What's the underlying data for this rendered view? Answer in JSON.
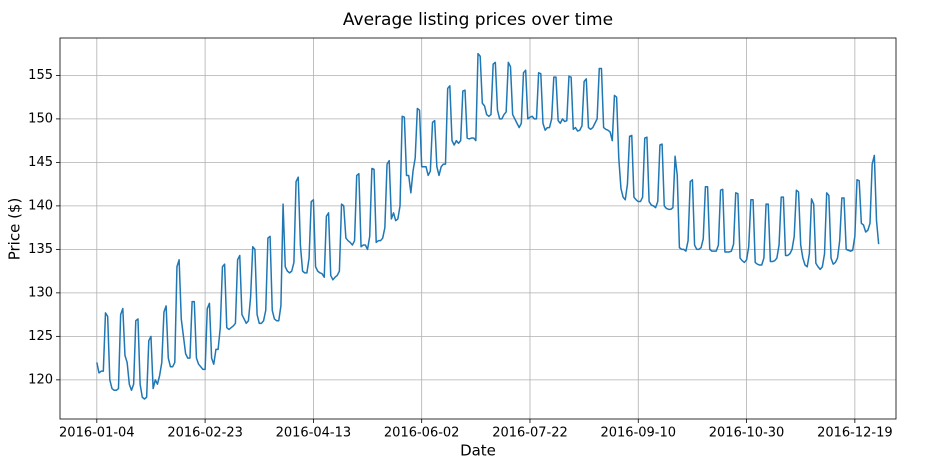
{
  "chart_data": {
    "type": "line",
    "title": "Average listing prices over time",
    "xlabel": "Date",
    "ylabel": "Price ($)",
    "xlim": [
      "2015-12-18",
      "2017-01-07"
    ],
    "ylim": [
      115.5,
      159.3
    ],
    "grid": true,
    "line_color": "#1f77b4",
    "x_ticks": [
      "2016-01-04",
      "2016-02-23",
      "2016-04-13",
      "2016-06-02",
      "2016-07-22",
      "2016-09-10",
      "2016-10-30",
      "2016-12-19"
    ],
    "y_ticks": [
      120,
      125,
      130,
      135,
      140,
      145,
      150,
      155
    ],
    "series": [
      {
        "start_date": "2016-01-04",
        "values": [
          122.0,
          120.8,
          121.0,
          121.0,
          127.7,
          127.3,
          120.0,
          119.0,
          118.8,
          118.8,
          119.0,
          127.5,
          128.2,
          122.8,
          122.0,
          119.5,
          118.8,
          119.5,
          126.8,
          127.0,
          119.5,
          118.0,
          117.8,
          118.0,
          124.5,
          125.0,
          119.0,
          120.0,
          119.5,
          120.5,
          122.0,
          127.8,
          128.5,
          122.5,
          121.5,
          121.5,
          122.0,
          133.0,
          133.8,
          127.0,
          125.0,
          123.0,
          122.5,
          122.5,
          129.0,
          129.0,
          122.5,
          121.8,
          121.5,
          121.2,
          121.2,
          128.2,
          128.8,
          122.5,
          121.8,
          123.5,
          123.5,
          126.0,
          133.0,
          133.3,
          126.0,
          125.8,
          126.0,
          126.2,
          126.5,
          133.8,
          134.3,
          127.5,
          127.0,
          126.5,
          126.8,
          129.5,
          135.3,
          135.0,
          127.5,
          126.5,
          126.5,
          126.8,
          128.0,
          136.3,
          136.5,
          128.0,
          127.0,
          126.8,
          126.8,
          128.5,
          140.2,
          133.0,
          132.5,
          132.3,
          132.5,
          133.5,
          142.8,
          143.3,
          135.5,
          132.5,
          132.3,
          132.3,
          134.0,
          140.5,
          140.7,
          133.0,
          132.5,
          132.3,
          132.2,
          131.8,
          138.8,
          139.2,
          132.0,
          131.5,
          131.8,
          132.0,
          132.5,
          140.2,
          140.0,
          136.3,
          136.0,
          135.8,
          135.5,
          136.0,
          143.5,
          143.7,
          135.3,
          135.5,
          135.5,
          135.0,
          136.5,
          144.3,
          144.2,
          135.8,
          136.0,
          136.0,
          136.3,
          137.5,
          144.8,
          145.2,
          138.5,
          139.2,
          138.3,
          138.5,
          140.0,
          150.3,
          150.2,
          143.5,
          143.5,
          141.5,
          144.0,
          145.5,
          151.2,
          151.0,
          144.5,
          144.5,
          144.5,
          143.5,
          144.0,
          149.6,
          149.8,
          144.5,
          143.5,
          144.5,
          144.8,
          144.8,
          153.5,
          153.8,
          147.5,
          147.0,
          147.5,
          147.2,
          147.5,
          153.2,
          153.3,
          147.8,
          147.7,
          147.8,
          147.8,
          147.5,
          157.5,
          157.2,
          151.8,
          151.5,
          150.5,
          150.3,
          150.5,
          156.3,
          156.5,
          151.0,
          150.0,
          150.0,
          150.5,
          150.8,
          156.5,
          156.0,
          150.5,
          150.0,
          149.5,
          149.0,
          149.5,
          155.3,
          155.6,
          150.0,
          150.2,
          150.3,
          150.0,
          150.0,
          155.3,
          155.2,
          149.5,
          148.7,
          149.0,
          149.0,
          150.0,
          154.8,
          154.8,
          149.8,
          149.5,
          150.0,
          149.7,
          149.8,
          154.9,
          154.8,
          148.8,
          149.0,
          148.6,
          148.7,
          149.2,
          154.3,
          154.6,
          149.0,
          148.8,
          149.0,
          149.5,
          150.0,
          155.8,
          155.8,
          149.0,
          148.8,
          148.7,
          148.5,
          147.5,
          152.7,
          152.5,
          145.5,
          142.0,
          141.0,
          140.7,
          142.5,
          148.0,
          148.1,
          141.0,
          140.7,
          140.5,
          140.5,
          141.0,
          147.8,
          147.9,
          140.5,
          140.1,
          140.0,
          139.8,
          140.5,
          147.0,
          147.1,
          140.0,
          139.7,
          139.6,
          139.6,
          139.8,
          145.7,
          143.5,
          135.2,
          135.0,
          135.0,
          134.8,
          136.0,
          142.8,
          143.0,
          135.5,
          135.0,
          135.0,
          135.2,
          136.2,
          142.2,
          142.2,
          135.0,
          134.8,
          134.8,
          134.8,
          135.5,
          141.8,
          141.9,
          134.7,
          134.7,
          134.7,
          134.8,
          135.6,
          141.5,
          141.4,
          134.0,
          133.7,
          133.5,
          133.8,
          135.3,
          140.7,
          140.7,
          133.5,
          133.3,
          133.2,
          133.2,
          134.0,
          140.2,
          140.2,
          133.6,
          133.6,
          133.7,
          134.0,
          135.5,
          141.0,
          141.0,
          134.3,
          134.3,
          134.5,
          135.0,
          136.5,
          141.8,
          141.6,
          135.5,
          134.0,
          133.2,
          133.0,
          134.5,
          140.8,
          140.2,
          133.4,
          133.0,
          132.7,
          133.0,
          134.5,
          141.5,
          141.2,
          134.0,
          133.3,
          133.5,
          134.0,
          136.0,
          140.9,
          140.9,
          135.0,
          134.9,
          134.8,
          134.9,
          136.5,
          143.0,
          142.9,
          138.0,
          137.8,
          137.0,
          137.2,
          138.0,
          144.8,
          145.8,
          138.3,
          135.6
        ]
      }
    ]
  }
}
